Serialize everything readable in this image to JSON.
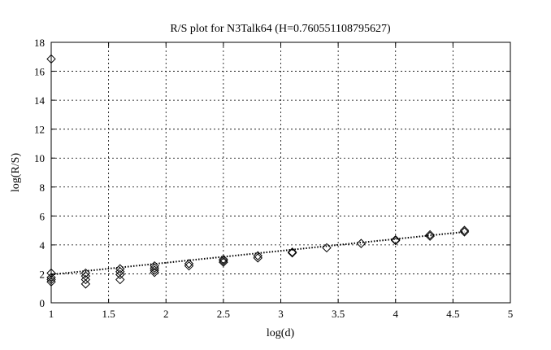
{
  "chart_data": {
    "type": "scatter",
    "title": "R/S plot for N3Talk64 (H=0.760551108795627)",
    "xlabel": "log(d)",
    "ylabel": "log(R/S)",
    "xlim": [
      1,
      5
    ],
    "ylim": [
      0,
      18
    ],
    "xticks": [
      1,
      1.5,
      2,
      2.5,
      3,
      3.5,
      4,
      4.5,
      5
    ],
    "yticks": [
      0,
      2,
      4,
      6,
      8,
      10,
      12,
      14,
      16,
      18
    ],
    "grid": true,
    "marker": "diamond",
    "points": [
      [
        1.0,
        16.85
      ],
      [
        1.0,
        2.05
      ],
      [
        1.0,
        1.75
      ],
      [
        1.0,
        1.6
      ],
      [
        1.0,
        1.45
      ],
      [
        1.3,
        2.05
      ],
      [
        1.3,
        1.85
      ],
      [
        1.3,
        1.6
      ],
      [
        1.3,
        1.3
      ],
      [
        1.6,
        2.35
      ],
      [
        1.6,
        2.15
      ],
      [
        1.6,
        1.95
      ],
      [
        1.6,
        1.6
      ],
      [
        1.9,
        2.55
      ],
      [
        1.9,
        2.4
      ],
      [
        1.9,
        2.25
      ],
      [
        1.9,
        2.1
      ],
      [
        2.2,
        2.7
      ],
      [
        2.2,
        2.55
      ],
      [
        2.5,
        3.0
      ],
      [
        2.5,
        2.9
      ],
      [
        2.5,
        2.8
      ],
      [
        2.8,
        3.25
      ],
      [
        2.8,
        3.1
      ],
      [
        3.1,
        3.5
      ],
      [
        3.1,
        3.45
      ],
      [
        3.4,
        3.8
      ],
      [
        3.7,
        4.1
      ],
      [
        4.0,
        4.35
      ],
      [
        4.0,
        4.3
      ],
      [
        4.3,
        4.7
      ],
      [
        4.3,
        4.6
      ],
      [
        4.6,
        5.0
      ],
      [
        4.6,
        4.9
      ]
    ],
    "fit_line": {
      "x": [
        1.0,
        4.6
      ],
      "y": [
        1.95,
        4.9
      ]
    }
  }
}
